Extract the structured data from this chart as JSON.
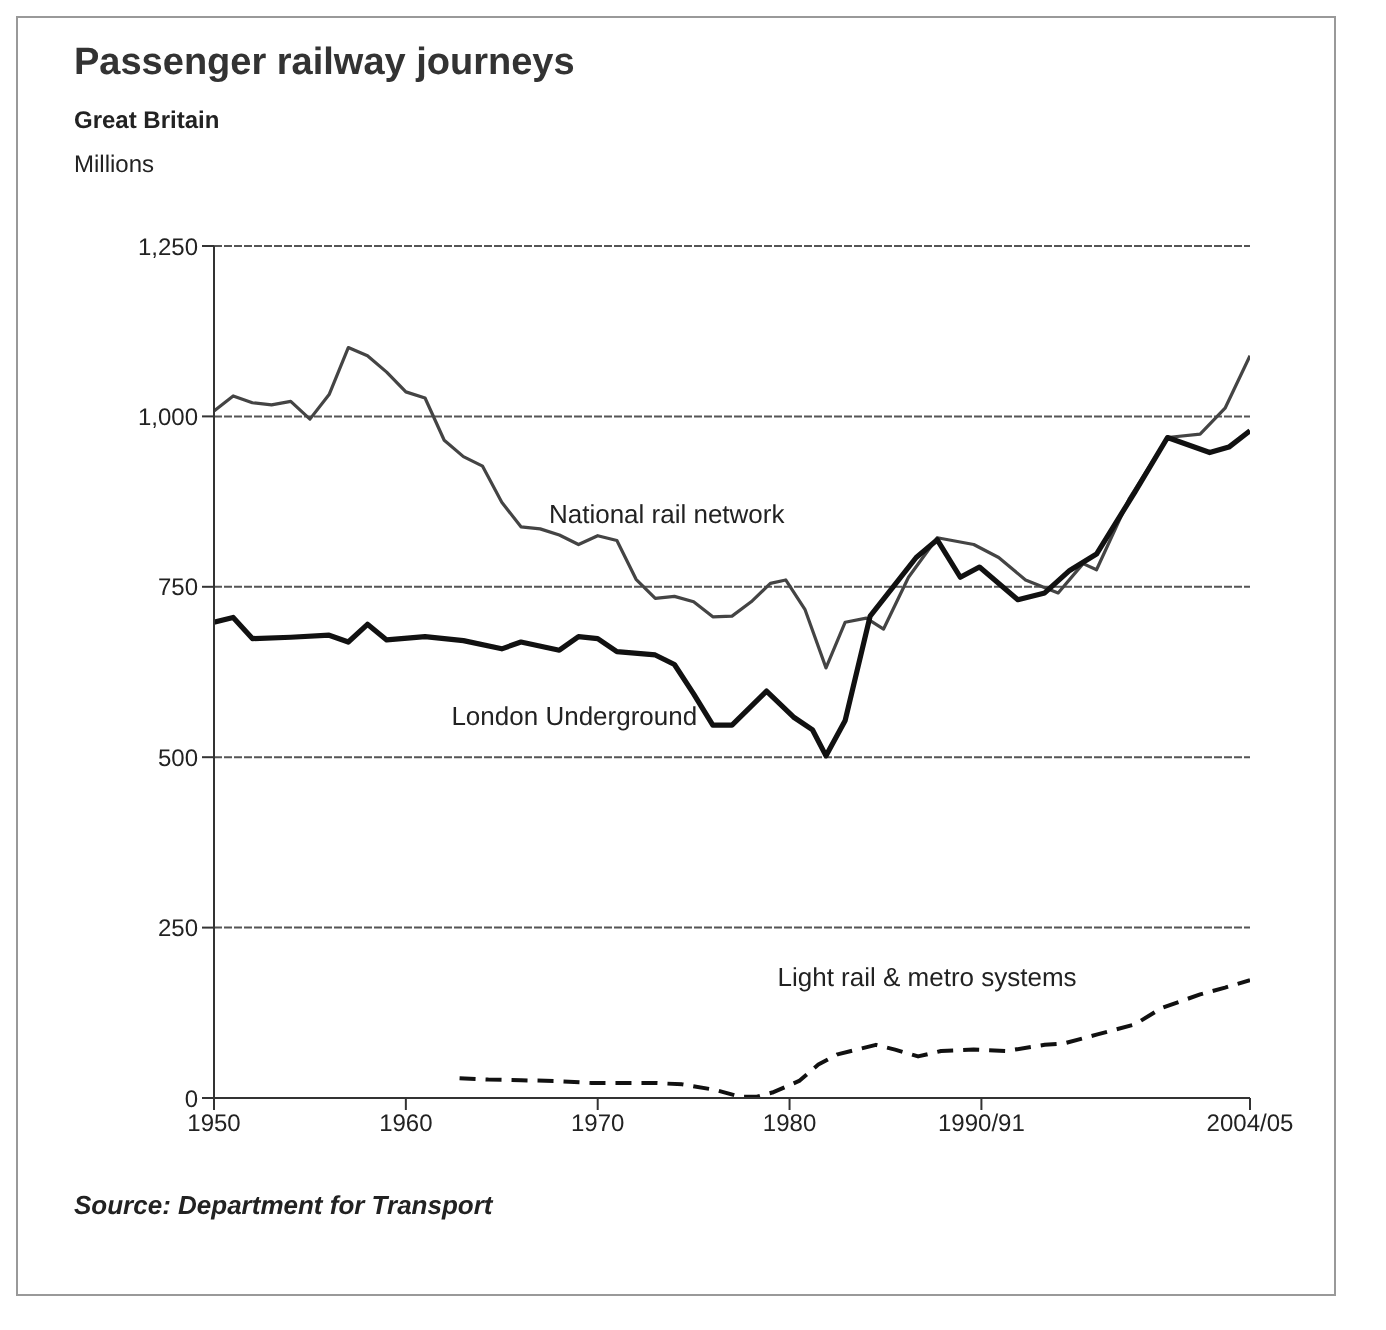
{
  "chart_data": {
    "type": "line",
    "title": "Passenger railway journeys",
    "subtitle": "Great Britain",
    "ylabel": "Millions",
    "annotations": [
      "Source: Department for Transport"
    ],
    "xlim": [
      1950,
      2004
    ],
    "xticks": [
      1950,
      1960,
      1970,
      1980,
      {
        "value": 1990,
        "label": "1990/91"
      },
      {
        "value": 2004,
        "label": "2004/05"
      }
    ],
    "ylim": [
      0,
      1250
    ],
    "yticks": [
      0,
      250,
      500,
      750,
      {
        "value": 1000,
        "label": "1,000"
      },
      {
        "value": 1250,
        "label": "1,250"
      }
    ],
    "grid": "y",
    "marker": "none",
    "series": [
      {
        "name": "National rail network",
        "color": "#444444",
        "line_style": "solid",
        "x": [
          1950,
          1951,
          1952,
          1953,
          1954,
          1955,
          1956,
          1957,
          1958,
          1959,
          1960,
          1961,
          1962,
          1963,
          1964,
          1965,
          1966,
          1967,
          1968,
          1969,
          1970,
          1971,
          1972,
          1973,
          1974,
          1975,
          1976,
          1977,
          1978,
          1979,
          1979.8,
          1980.8,
          1981.9,
          1982.9,
          1984,
          1984.9,
          1986.2,
          1987.7,
          1989.6,
          1990.9,
          1992.3,
          1994,
          1995.3,
          1996,
          1997.7,
          1999.7,
          2001.4,
          2002.7,
          2004
        ],
        "values": [
          1008,
          1030,
          1020,
          1017,
          1022,
          996,
          1032,
          1101,
          1089,
          1065,
          1036,
          1027,
          965,
          941,
          927,
          874,
          838,
          835,
          826,
          812,
          825,
          818,
          761,
          733,
          736,
          728,
          706,
          707,
          728,
          755,
          760,
          717,
          631,
          698,
          704,
          688,
          764,
          822,
          812,
          793,
          760,
          741,
          784,
          775,
          879,
          969,
          974,
          1012,
          1089
        ]
      },
      {
        "name": "London Underground",
        "color": "#111111",
        "line_style": "solid",
        "x": [
          1950,
          1951,
          1952,
          1954,
          1956,
          1957,
          1958,
          1959,
          1961,
          1963,
          1965,
          1966,
          1968,
          1969,
          1970,
          1971,
          1973,
          1974,
          1975,
          1976,
          1977,
          1978.8,
          1980.2,
          1981.2,
          1981.9,
          1982.9,
          1984.2,
          1985.4,
          1986.6,
          1987.7,
          1988.9,
          1989.9,
          1991.9,
          1993.3,
          1994.6,
          1996,
          1998,
          1999.7,
          2001.9,
          2002.9,
          2004
        ],
        "values": [
          698,
          705,
          674,
          676,
          679,
          669,
          695,
          672,
          677,
          671,
          659,
          669,
          657,
          677,
          674,
          655,
          650,
          636,
          593,
          547,
          547,
          597,
          559,
          540,
          502,
          554,
          707,
          750,
          793,
          819,
          764,
          779,
          731,
          741,
          774,
          798,
          889,
          969,
          947,
          955,
          979
        ]
      },
      {
        "name": "Light rail & metro systems",
        "color": "#111111",
        "line_style": "dashed",
        "x": [
          1962.8,
          1964.3,
          1966,
          1967.7,
          1969.7,
          1971.7,
          1973,
          1974.4,
          1976.1,
          1977.4,
          1978.3,
          1979.1,
          1980.5,
          1981.5,
          1982.5,
          1984.5,
          1985.5,
          1986.7,
          1987.9,
          1989.6,
          1991.3,
          1993.3,
          1994.3,
          1996,
          1998,
          1999.4,
          2001.4,
          2002.7,
          2004
        ],
        "values": [
          29,
          27,
          26,
          25,
          22,
          22,
          22,
          20,
          12,
          2,
          2,
          8,
          25,
          49,
          64,
          78,
          71,
          61,
          69,
          71,
          69,
          78,
          80,
          93,
          108,
          132,
          152,
          162,
          173
        ]
      }
    ]
  }
}
